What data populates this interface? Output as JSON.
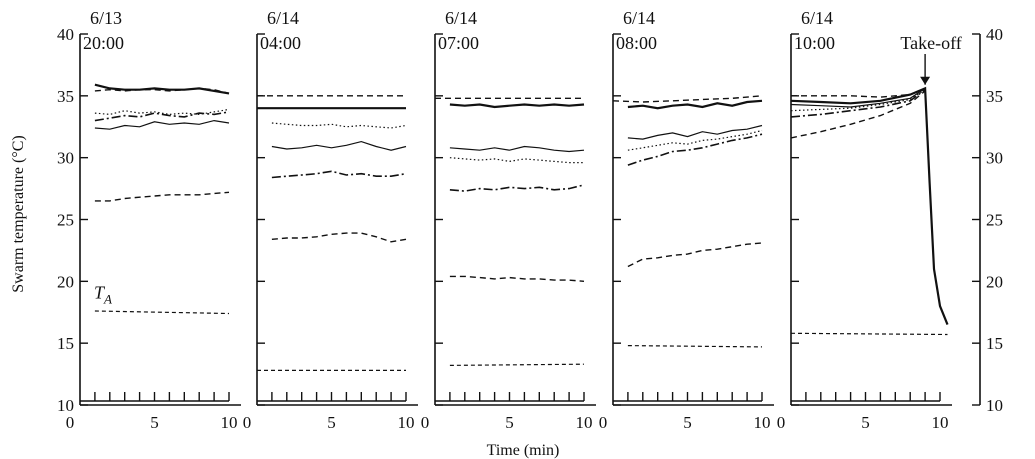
{
  "chart_data": {
    "type": "line",
    "ylabel": "Swarm temperature (°C)",
    "xlabel": "Time (min)",
    "ylim": [
      10,
      40
    ],
    "xlim": [
      0,
      10
    ],
    "yticks": [
      10,
      15,
      20,
      25,
      30,
      35,
      40
    ],
    "xticks": [
      0,
      5,
      10
    ],
    "grid": false,
    "panels": [
      {
        "date": "6/13",
        "time": "20:00",
        "series": [
          {
            "style": "solid-bold",
            "x": [
              1,
              2,
              3,
              4,
              5,
              6,
              7,
              8,
              9,
              10
            ],
            "y": [
              35.9,
              35.6,
              35.5,
              35.5,
              35.6,
              35.5,
              35.5,
              35.6,
              35.4,
              35.2
            ]
          },
          {
            "style": "dashed",
            "x": [
              1,
              2,
              3,
              4,
              5,
              6,
              7,
              8,
              9,
              10
            ],
            "y": [
              35.4,
              35.5,
              35.4,
              35.5,
              35.5,
              35.4,
              35.5,
              35.6,
              35.5,
              35.2
            ]
          },
          {
            "style": "dotted",
            "x": [
              1,
              2,
              3,
              4,
              5,
              6,
              7,
              8,
              9,
              10
            ],
            "y": [
              33.6,
              33.5,
              33.8,
              33.6,
              33.7,
              33.5,
              33.6,
              33.5,
              33.7,
              33.9
            ]
          },
          {
            "style": "dashdot",
            "x": [
              1,
              2,
              3,
              4,
              5,
              6,
              7,
              8,
              9,
              10
            ],
            "y": [
              33.0,
              33.2,
              33.4,
              33.3,
              33.6,
              33.4,
              33.3,
              33.6,
              33.5,
              33.7
            ]
          },
          {
            "style": "solid",
            "x": [
              1,
              2,
              3,
              4,
              5,
              6,
              7,
              8,
              9,
              10
            ],
            "y": [
              32.4,
              32.3,
              32.6,
              32.5,
              32.9,
              32.7,
              32.8,
              32.7,
              33.0,
              32.8
            ]
          },
          {
            "style": "dashed",
            "x": [
              1,
              2,
              3,
              4,
              5,
              6,
              7,
              8,
              9,
              10
            ],
            "y": [
              26.5,
              26.5,
              26.7,
              26.8,
              26.9,
              27.0,
              27.0,
              27.0,
              27.1,
              27.2
            ]
          },
          {
            "style": "dashed-ta",
            "x": [
              1,
              10
            ],
            "y": [
              17.6,
              17.4
            ]
          }
        ],
        "annotations": [
          "T_A"
        ]
      },
      {
        "date": "6/14",
        "time": "04:00",
        "series": [
          {
            "style": "dashed",
            "x": [
              0,
              10
            ],
            "y": [
              35.0,
              35.0
            ]
          },
          {
            "style": "solid-bold",
            "x": [
              0,
              10
            ],
            "y": [
              34.0,
              34.0
            ]
          },
          {
            "style": "dotted",
            "x": [
              1,
              2,
              3,
              4,
              5,
              6,
              7,
              8,
              9,
              10
            ],
            "y": [
              32.8,
              32.7,
              32.6,
              32.6,
              32.7,
              32.5,
              32.6,
              32.5,
              32.4,
              32.6
            ]
          },
          {
            "style": "solid",
            "x": [
              1,
              2,
              3,
              4,
              5,
              6,
              7,
              8,
              9,
              10
            ],
            "y": [
              30.9,
              30.7,
              30.8,
              31.0,
              30.8,
              31.0,
              31.3,
              30.9,
              30.6,
              30.9
            ]
          },
          {
            "style": "dashdot",
            "x": [
              1,
              2,
              3,
              4,
              5,
              6,
              7,
              8,
              9,
              10
            ],
            "y": [
              28.4,
              28.5,
              28.6,
              28.7,
              28.9,
              28.6,
              28.7,
              28.5,
              28.5,
              28.7
            ]
          },
          {
            "style": "dashed",
            "x": [
              1,
              2,
              3,
              4,
              5,
              6,
              7,
              8,
              9,
              10
            ],
            "y": [
              23.4,
              23.5,
              23.5,
              23.6,
              23.8,
              23.9,
              23.9,
              23.6,
              23.2,
              23.4
            ]
          },
          {
            "style": "dashed-ta",
            "x": [
              0,
              10
            ],
            "y": [
              12.8,
              12.8
            ]
          }
        ]
      },
      {
        "date": "6/14",
        "time": "07:00",
        "series": [
          {
            "style": "dashed",
            "x": [
              0,
              10
            ],
            "y": [
              34.8,
              34.8
            ]
          },
          {
            "style": "solid-bold",
            "x": [
              1,
              2,
              3,
              4,
              5,
              6,
              7,
              8,
              9,
              10
            ],
            "y": [
              34.3,
              34.2,
              34.3,
              34.1,
              34.2,
              34.3,
              34.2,
              34.3,
              34.2,
              34.3
            ]
          },
          {
            "style": "solid",
            "x": [
              1,
              2,
              3,
              4,
              5,
              6,
              7,
              8,
              9,
              10
            ],
            "y": [
              30.8,
              30.7,
              30.6,
              30.8,
              30.6,
              30.9,
              30.8,
              30.6,
              30.5,
              30.6
            ]
          },
          {
            "style": "dotted",
            "x": [
              1,
              2,
              3,
              4,
              5,
              6,
              7,
              8,
              9,
              10
            ],
            "y": [
              30.0,
              29.9,
              29.8,
              29.9,
              29.7,
              29.9,
              29.8,
              29.7,
              29.6,
              29.6
            ]
          },
          {
            "style": "dashdot",
            "x": [
              1,
              2,
              3,
              4,
              5,
              6,
              7,
              8,
              9,
              10
            ],
            "y": [
              27.4,
              27.3,
              27.5,
              27.4,
              27.6,
              27.5,
              27.6,
              27.4,
              27.5,
              27.8
            ]
          },
          {
            "style": "dashed",
            "x": [
              1,
              2,
              3,
              4,
              5,
              6,
              7,
              8,
              9,
              10
            ],
            "y": [
              20.4,
              20.4,
              20.3,
              20.2,
              20.3,
              20.2,
              20.2,
              20.1,
              20.1,
              20.0
            ]
          },
          {
            "style": "dashed-ta",
            "x": [
              1,
              10
            ],
            "y": [
              13.2,
              13.3
            ]
          }
        ]
      },
      {
        "date": "6/14",
        "time": "08:00",
        "series": [
          {
            "style": "dashed",
            "x": [
              0,
              2,
              4,
              6,
              8,
              10
            ],
            "y": [
              34.6,
              34.5,
              34.6,
              34.7,
              34.8,
              35.0
            ]
          },
          {
            "style": "solid-bold",
            "x": [
              1,
              2,
              3,
              4,
              5,
              6,
              7,
              8,
              9,
              10
            ],
            "y": [
              34.1,
              34.2,
              34.0,
              34.2,
              34.3,
              34.1,
              34.4,
              34.2,
              34.5,
              34.6
            ]
          },
          {
            "style": "solid",
            "x": [
              1,
              2,
              3,
              4,
              5,
              6,
              7,
              8,
              9,
              10
            ],
            "y": [
              31.6,
              31.5,
              31.8,
              32.0,
              31.7,
              32.1,
              31.9,
              32.2,
              32.3,
              32.6
            ]
          },
          {
            "style": "dotted",
            "x": [
              1,
              2,
              3,
              4,
              5,
              6,
              7,
              8,
              9,
              10
            ],
            "y": [
              30.6,
              30.8,
              31.0,
              31.2,
              31.1,
              31.4,
              31.5,
              31.7,
              31.9,
              32.2
            ]
          },
          {
            "style": "dashdot",
            "x": [
              1,
              2,
              3,
              4,
              5,
              6,
              7,
              8,
              9,
              10
            ],
            "y": [
              29.4,
              29.8,
              30.1,
              30.5,
              30.6,
              30.8,
              31.1,
              31.4,
              31.6,
              31.9
            ]
          },
          {
            "style": "dashed",
            "x": [
              1,
              2,
              3,
              4,
              5,
              6,
              7,
              8,
              9,
              10
            ],
            "y": [
              21.2,
              21.8,
              21.9,
              22.1,
              22.2,
              22.5,
              22.6,
              22.8,
              23.0,
              23.1
            ]
          },
          {
            "style": "dashed-ta",
            "x": [
              1,
              10
            ],
            "y": [
              14.8,
              14.7
            ]
          }
        ]
      },
      {
        "date": "6/14",
        "time": "10:00",
        "series": [
          {
            "style": "dashed",
            "x": [
              0,
              2,
              4,
              6,
              8,
              9
            ],
            "y": [
              35.0,
              35.0,
              35.0,
              34.9,
              35.1,
              35.6
            ]
          },
          {
            "style": "solid-bold",
            "x": [
              0,
              2,
              4,
              6,
              8,
              9,
              9.3,
              9.6,
              10,
              10.5
            ],
            "y": [
              34.6,
              34.5,
              34.4,
              34.6,
              35.1,
              35.6,
              28.0,
              21.0,
              18.0,
              16.5
            ]
          },
          {
            "style": "solid",
            "x": [
              0,
              2,
              4,
              6,
              8,
              9
            ],
            "y": [
              34.3,
              34.2,
              34.1,
              34.4,
              34.8,
              35.6
            ]
          },
          {
            "style": "dotted",
            "x": [
              0,
              2,
              4,
              6,
              8,
              9
            ],
            "y": [
              33.8,
              33.9,
              34.0,
              34.3,
              34.7,
              35.5
            ]
          },
          {
            "style": "dashdot",
            "x": [
              0,
              2,
              4,
              6,
              8,
              9
            ],
            "y": [
              33.3,
              33.5,
              33.8,
              34.1,
              34.6,
              35.5
            ]
          },
          {
            "style": "dashed",
            "x": [
              0,
              2,
              4,
              6,
              8,
              9
            ],
            "y": [
              31.6,
              32.1,
              32.7,
              33.4,
              34.4,
              35.4
            ]
          },
          {
            "style": "dashed-ta",
            "x": [
              0,
              10.5
            ],
            "y": [
              15.8,
              15.7
            ]
          }
        ],
        "annotations": [
          "Take-off"
        ]
      }
    ]
  }
}
